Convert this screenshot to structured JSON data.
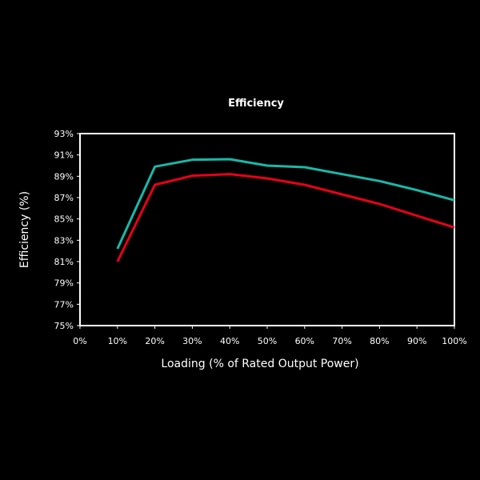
{
  "chart_data": {
    "type": "line",
    "title": "Efficiency",
    "xlabel": "Loading (% of Rated Output Power)",
    "ylabel": "Efficiency (%)",
    "x_ticks": [
      "0%",
      "10%",
      "20%",
      "30%",
      "40%",
      "50%",
      "60%",
      "70%",
      "80%",
      "90%",
      "100%"
    ],
    "y_ticks": [
      "75%",
      "77%",
      "79%",
      "81%",
      "83%",
      "85%",
      "87%",
      "89%",
      "91%",
      "93%"
    ],
    "xlim": [
      0,
      100
    ],
    "ylim": [
      75,
      93
    ],
    "grid": false,
    "x": [
      10,
      20,
      30,
      40,
      50,
      60,
      70,
      80,
      90,
      100
    ],
    "series": [
      {
        "color": "#19b8a8",
        "values": [
          82.2,
          89.9,
          90.55,
          90.6,
          90.0,
          89.85,
          89.2,
          88.55,
          87.7,
          86.75
        ]
      },
      {
        "color": "#e8001a",
        "values": [
          81.0,
          88.2,
          89.05,
          89.2,
          88.8,
          88.2,
          87.3,
          86.4,
          85.3,
          84.2
        ]
      }
    ]
  }
}
